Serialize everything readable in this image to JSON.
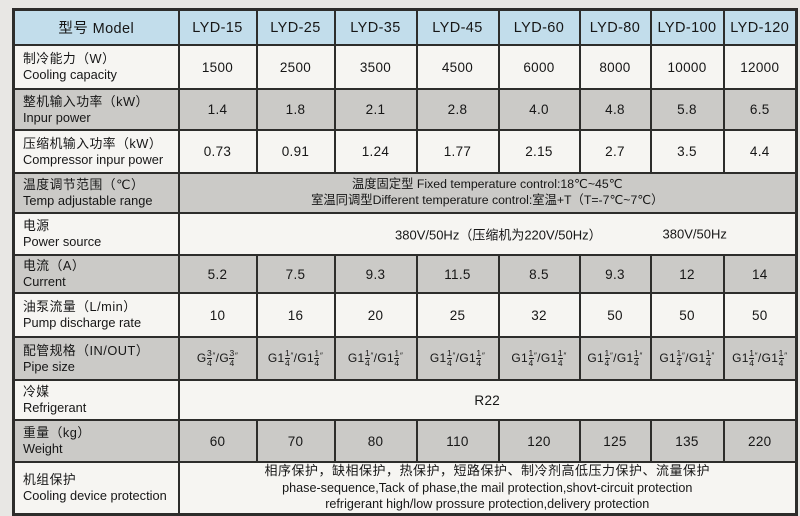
{
  "colors": {
    "header_blue": "#c2ddeb",
    "stripe_gray": "#cbcac7",
    "stripe_white": "#f6f5f2",
    "border": "#2d2d2b",
    "page_bg": "#e8e7e4"
  },
  "header": {
    "label": "型号 Model",
    "models": [
      "LYD-15",
      "LYD-25",
      "LYD-35",
      "LYD-45",
      "LYD-60",
      "LYD-80",
      "LYD-100",
      "LYD-120"
    ]
  },
  "rows": {
    "cooling": {
      "label_zh": "制冷能力（W）",
      "label_en": "Cooling capacity",
      "values": [
        "1500",
        "2500",
        "3500",
        "4500",
        "6000",
        "8000",
        "10000",
        "12000"
      ]
    },
    "input_power": {
      "label_zh": "整机输入功率（kW）",
      "label_en": "Inpur power",
      "values": [
        "1.4",
        "1.8",
        "2.1",
        "2.8",
        "4.0",
        "4.8",
        "5.8",
        "6.5"
      ]
    },
    "compressor": {
      "label_zh": "压缩机输入功率（kW）",
      "label_en": "Compressor inpur power",
      "values": [
        "0.73",
        "0.91",
        "1.24",
        "1.77",
        "2.15",
        "2.7",
        "3.5",
        "4.4"
      ]
    },
    "temp_range": {
      "label_zh": "温度调节范围（℃）",
      "label_en": "Temp adjustable range",
      "line1": "温度固定型 Fixed temperature control:18℃~45℃",
      "line2": "室温同调型Different temperature control:室温+T（T=-7℃~7℃）"
    },
    "power_source": {
      "label_zh": "电源",
      "label_en": "Power source",
      "value_main": "380V/50Hz（压缩机为220V/50Hz）",
      "value_right": "380V/50Hz"
    },
    "current": {
      "label_zh": "电流（A）",
      "label_en": "Current",
      "values": [
        "5.2",
        "7.5",
        "9.3",
        "11.5",
        "8.5",
        "9.3",
        "12",
        "14"
      ]
    },
    "pump": {
      "label_zh": "油泵流量（L/min）",
      "label_en": "Pump discharge rate",
      "values": [
        "10",
        "16",
        "20",
        "25",
        "32",
        "50",
        "50",
        "50"
      ]
    },
    "pipe": {
      "label_zh": "配管规格（IN/OUT）",
      "label_en": "Pipe size",
      "cells": [
        {
          "pre": "G",
          "num": "3",
          "den": "4",
          "text": "G3/4\"/G3/4\""
        },
        {
          "pre": "G1",
          "num": "1",
          "den": "4",
          "text": "G1 1/4\"/G1 1/4\""
        },
        {
          "pre": "G1",
          "num": "1",
          "den": "4",
          "text": "G1 1/4\"/G1 1/4\""
        },
        {
          "pre": "G1",
          "num": "1",
          "den": "4",
          "text": "G1 1/4\"/G1 1/4\""
        },
        {
          "pre": "G1",
          "num": "1",
          "den": "4",
          "text": "G1 1/4\"/G1 1/4\""
        },
        {
          "pre": "G1",
          "num": "1",
          "den": "4",
          "text": "G1 1/4\"/G1 1/4\""
        },
        {
          "pre": "G1",
          "num": "1",
          "den": "4",
          "text": "G1 1/4\"/G1 1/4\""
        },
        {
          "pre": "G1",
          "num": "1",
          "den": "4",
          "text": "G1 1/4\"/G1 1/4\""
        }
      ],
      "prime": "″",
      "slash": "/"
    },
    "refrigerant": {
      "label_zh": "冷媒",
      "label_en": "Refrigerant",
      "value": "R22"
    },
    "weight": {
      "label_zh": "重量（kg）",
      "label_en": "Weight",
      "values": [
        "60",
        "70",
        "80",
        "110",
        "120",
        "125",
        "135",
        "220"
      ]
    },
    "protection": {
      "label_zh": "机组保护",
      "label_en": "Cooling device protection",
      "line1": "相序保护，缺相保护，热保护，短路保护、制冷剂高低压力保护、流量保护",
      "line2": "phase-sequence,Tack of phase,the mail protection,shovt-circuit protection",
      "line3": "refrigerant high/low prossure protection,delivery protection"
    }
  }
}
